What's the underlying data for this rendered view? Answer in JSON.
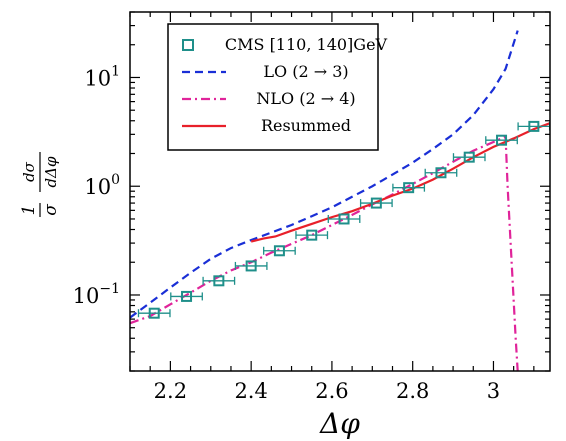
{
  "chart_data": {
    "type": "line",
    "xlabel": "Δφ",
    "ylabel": "1/σ dσ/dΔφ",
    "ylabel_parts": {
      "one": "1",
      "sigma": "σ",
      "num": "dσ",
      "den": "dΔφ"
    },
    "xscale": "linear",
    "yscale": "log",
    "xlim": [
      2.1,
      3.14
    ],
    "ylim": [
      0.02,
      40
    ],
    "xticks": [
      2.2,
      2.4,
      2.6,
      2.8,
      3.0
    ],
    "xtick_labels": [
      "2.2",
      "2.4",
      "2.6",
      "2.8",
      "3"
    ],
    "yticks": [
      0.1,
      1,
      10
    ],
    "ytick_labels": [
      {
        "base": "10",
        "exp": "−1"
      },
      {
        "base": "10",
        "exp": "0"
      },
      {
        "base": "10",
        "exp": "1"
      }
    ],
    "grid": false,
    "legend_position": "top-center",
    "series": [
      {
        "name": "CMS [110, 140]GeV",
        "kind": "points_with_xerr",
        "color": "#1f8f8a",
        "x": [
          2.16,
          2.24,
          2.32,
          2.4,
          2.47,
          2.55,
          2.63,
          2.71,
          2.79,
          2.87,
          2.94,
          3.02,
          3.1
        ],
        "y": [
          0.068,
          0.097,
          0.135,
          0.185,
          0.255,
          0.355,
          0.5,
          0.7,
          0.97,
          1.33,
          1.85,
          2.65,
          3.55
        ],
        "xerr": 0.039
      },
      {
        "name": "LO (2 → 3)",
        "kind": "line",
        "style": "dashed",
        "color": "#1a2fd6",
        "x": [
          2.1,
          2.15,
          2.2,
          2.25,
          2.3,
          2.35,
          2.4,
          2.45,
          2.5,
          2.55,
          2.6,
          2.65,
          2.7,
          2.75,
          2.8,
          2.85,
          2.9,
          2.95,
          3.0,
          3.03,
          3.06
        ],
        "y": [
          0.062,
          0.085,
          0.117,
          0.16,
          0.215,
          0.27,
          0.32,
          0.375,
          0.44,
          0.53,
          0.64,
          0.8,
          1.0,
          1.28,
          1.65,
          2.2,
          3.0,
          4.5,
          7.8,
          12.0,
          27.0
        ]
      },
      {
        "name": "NLO (2 → 4)",
        "kind": "line",
        "style": "dashdot",
        "color": "#e0249a",
        "x": [
          2.1,
          2.15,
          2.2,
          2.25,
          2.3,
          2.35,
          2.4,
          2.45,
          2.5,
          2.55,
          2.6,
          2.65,
          2.7,
          2.75,
          2.8,
          2.85,
          2.9,
          2.95,
          3.0,
          3.02,
          3.03,
          3.035,
          3.045,
          3.055,
          3.06
        ],
        "y": [
          0.055,
          0.064,
          0.082,
          0.105,
          0.135,
          0.168,
          0.2,
          0.245,
          0.295,
          0.355,
          0.44,
          0.545,
          0.68,
          0.84,
          1.05,
          1.32,
          1.68,
          2.12,
          2.55,
          2.75,
          2.85,
          1.0,
          0.2,
          0.04,
          0.02
        ]
      },
      {
        "name": "Resummed",
        "kind": "line",
        "style": "solid",
        "color": "#e8202a",
        "x": [
          2.4,
          2.43,
          2.46,
          2.5,
          2.55,
          2.6,
          2.65,
          2.7,
          2.75,
          2.8,
          2.85,
          2.9,
          2.95,
          3.0,
          3.05,
          3.1,
          3.14
        ],
        "y": [
          0.31,
          0.33,
          0.345,
          0.39,
          0.45,
          0.52,
          0.59,
          0.69,
          0.82,
          0.95,
          1.15,
          1.45,
          1.85,
          2.3,
          2.75,
          3.35,
          3.8
        ]
      }
    ]
  }
}
